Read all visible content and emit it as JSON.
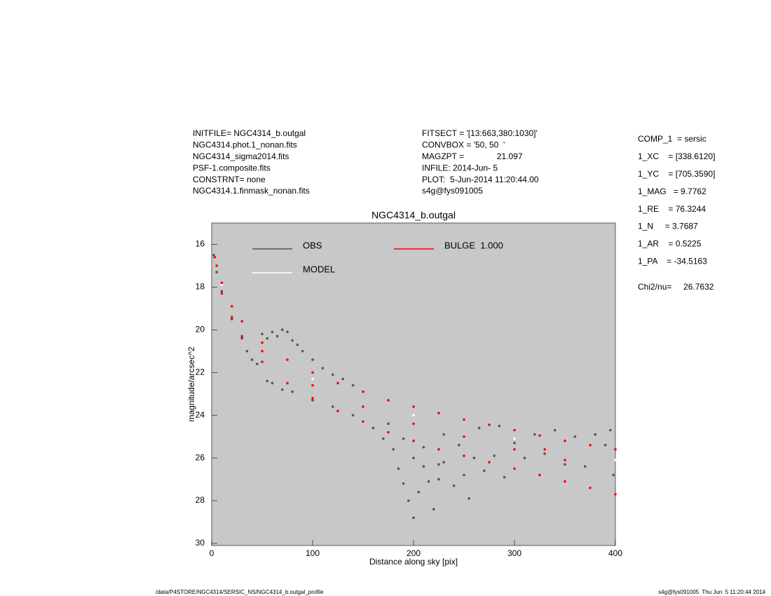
{
  "info_left": [
    "INITFILE= NGC4314_b.outgal",
    "NGC4314.phot.1_nonan.fits",
    "NGC4314_sigma2014.fits",
    "PSF-1.composite.fits",
    "CONSTRNT= none",
    "NGC4314.1.finmask_nonan.fits"
  ],
  "info_middle": [
    "FITSECT = '[13:663,380:1030]'",
    "CONVBOX = '50, 50  '",
    "MAGZPT =              21.097",
    "INFILE: 2014-Jun- 5",
    "PLOT:  5-Jun-2014 11:20:44.00",
    "s4g@fys091005"
  ],
  "params": [
    "COMP_1  = sersic",
    "1_XC    = [338.6120]",
    "1_YC    = [705.3590]",
    "1_MAG   = 9.7762",
    "1_RE    = 76.3244",
    "1_N     = 3.7687",
    "1_AR    = 0.5225",
    "1_PA    = -34.5163"
  ],
  "chi2": "Chi2/nu=     26.7632",
  "footer_left": "/data/P4STORE/NGC4314/SERSIC_NS/NGC4314_b.outgal_profile",
  "footer_right": "s4g@fys091005  Thu Jun  5 11:20:44 2014",
  "chart_data": {
    "type": "scatter",
    "title": "NGC4314_b.outgal",
    "x_label": "Distance along sky [pix]",
    "y_label": "magnitude/arcsec^2",
    "xlim": [
      0,
      400
    ],
    "xticks": [
      0,
      100,
      200,
      300,
      400
    ],
    "ylim": [
      30.1,
      15
    ],
    "yticks": [
      16,
      18,
      20,
      22,
      24,
      26,
      28,
      30
    ],
    "background": "#c8c8c8",
    "series": [
      {
        "name": "OBS",
        "color": "#555555",
        "x": [
          2,
          5,
          10,
          20,
          30,
          35,
          40,
          45,
          50,
          55,
          60,
          65,
          70,
          75,
          80,
          85,
          90,
          100,
          110,
          120,
          130,
          140,
          150,
          55,
          60,
          70,
          80,
          100,
          120,
          140,
          160,
          170,
          180,
          185,
          190,
          195,
          200,
          205,
          210,
          215,
          220,
          225,
          230,
          240,
          250,
          255,
          260,
          270,
          280,
          290,
          300,
          310,
          320,
          330,
          340,
          350,
          360,
          370,
          380,
          390,
          398,
          395,
          175,
          190,
          230,
          265,
          285,
          245,
          210,
          200,
          225
        ],
        "values": [
          16.5,
          17.3,
          18.2,
          19.4,
          20.3,
          21.0,
          21.4,
          21.6,
          20.2,
          20.4,
          20.1,
          20.3,
          20.0,
          20.1,
          20.5,
          20.7,
          21.0,
          21.4,
          21.8,
          22.1,
          22.3,
          22.6,
          22.9,
          22.4,
          22.5,
          22.8,
          22.9,
          23.3,
          23.6,
          24.0,
          24.6,
          25.1,
          25.6,
          26.5,
          27.2,
          28.0,
          28.8,
          27.6,
          26.4,
          27.1,
          28.4,
          27.0,
          26.2,
          27.3,
          26.8,
          27.9,
          26.0,
          26.6,
          25.9,
          26.9,
          25.3,
          26.0,
          24.9,
          25.8,
          24.7,
          26.3,
          25.0,
          26.4,
          24.9,
          25.4,
          26.8,
          24.7,
          24.4,
          25.1,
          24.9,
          24.6,
          24.5,
          25.4,
          25.5,
          26.0,
          26.3
        ]
      },
      {
        "name": "MODEL",
        "color": "#ffffff",
        "x": [
          10,
          100,
          200,
          300,
          400
        ],
        "values": [
          17.9,
          22.3,
          24.0,
          25.1,
          26.1
        ]
      },
      {
        "name": "BULGE  1.000",
        "color": "#ff0000",
        "x": [
          3,
          5,
          10,
          20,
          30,
          50,
          75,
          100,
          125,
          150,
          175,
          200,
          225,
          250,
          275,
          300,
          325,
          350,
          375,
          400,
          10,
          20,
          30,
          50,
          75,
          100,
          125,
          150,
          175,
          200,
          225,
          250,
          275,
          300,
          325,
          350,
          375,
          400,
          50,
          100,
          150,
          200,
          250,
          300,
          350,
          330
        ],
        "values": [
          16.6,
          17.0,
          17.8,
          18.9,
          19.6,
          20.6,
          21.4,
          22.0,
          22.5,
          22.9,
          23.3,
          23.6,
          23.9,
          24.2,
          24.45,
          24.7,
          24.95,
          25.2,
          25.4,
          25.6,
          18.3,
          19.5,
          20.4,
          21.5,
          22.5,
          23.2,
          23.8,
          24.3,
          24.8,
          25.2,
          25.6,
          25.9,
          26.2,
          26.5,
          26.8,
          27.1,
          27.4,
          27.7,
          21.0,
          22.6,
          23.6,
          24.4,
          25.0,
          25.6,
          26.1,
          25.6
        ]
      }
    ]
  }
}
